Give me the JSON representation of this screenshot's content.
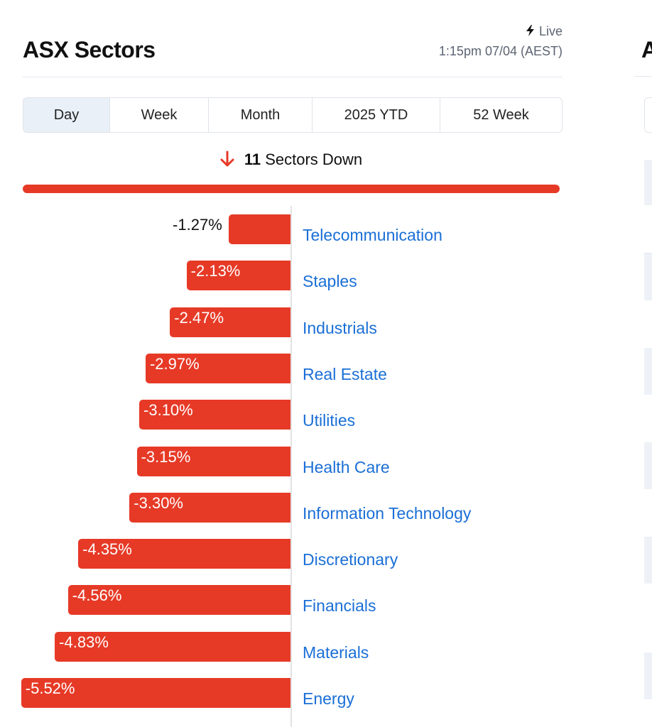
{
  "widget": {
    "title": "ASX Sectors",
    "live_label": "Live",
    "timestamp": "1:15pm 07/04 (AEST)"
  },
  "tabs": [
    {
      "label": "Day",
      "active": true
    },
    {
      "label": "Week",
      "active": false
    },
    {
      "label": "Month",
      "active": false
    },
    {
      "label": "2025 YTD",
      "active": false
    },
    {
      "label": "52 Week",
      "active": false
    }
  ],
  "summary": {
    "count": "11",
    "text": "Sectors Down",
    "down_fraction": 1.0
  },
  "colors": {
    "negative": "#e63a27",
    "link": "#1a6fd6",
    "active_tab": "#e9f0f8"
  },
  "icons": {
    "live": "lightning-bolt-icon",
    "summary": "down-arrow-icon"
  },
  "right_panel": {
    "title_fragment": "A"
  },
  "chart_data": {
    "type": "bar",
    "orientation": "horizontal",
    "categories": [
      "Telecommunication",
      "Staples",
      "Industrials",
      "Real Estate",
      "Utilities",
      "Health Care",
      "Information Technology",
      "Discretionary",
      "Financials",
      "Materials",
      "Energy"
    ],
    "values": [
      -1.27,
      -2.13,
      -2.47,
      -2.97,
      -3.1,
      -3.15,
      -3.3,
      -4.35,
      -4.56,
      -4.83,
      -5.52
    ],
    "labels": [
      "-1.27%",
      "-2.13%",
      "-2.47%",
      "-2.97%",
      "-3.10%",
      "-3.15%",
      "-3.30%",
      "-4.35%",
      "-4.56%",
      "-4.83%",
      "-5.52%"
    ],
    "unit": "%"
  }
}
